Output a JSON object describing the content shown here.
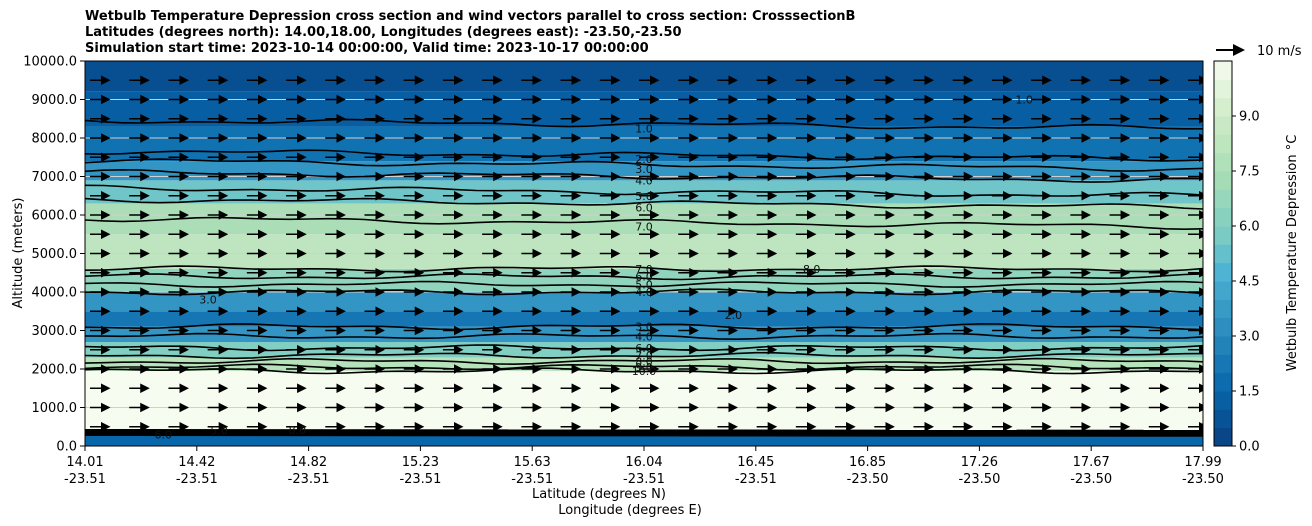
{
  "chart_data": {
    "type": "contour",
    "title_lines": [
      "Wetbulb Temperature Depression cross section and wind vectors parallel to cross section: CrosssectionB",
      "Latitudes (degrees north): 14.00,18.00, Longitudes (degrees east): -23.50,-23.50",
      "Simulation start time: 2023-10-14 00:00:00, Valid time: 2023-10-17 00:00:00"
    ],
    "xlabel_lat": "Latitude (degrees N)",
    "xlabel_lon": "Longitude (degrees E)",
    "ylabel": "Altitude (meters)",
    "ylim": [
      0,
      10000
    ],
    "y_ticks": [
      "0.0",
      "1000.0",
      "2000.0",
      "3000.0",
      "4000.0",
      "5000.0",
      "6000.0",
      "7000.0",
      "8000.0",
      "9000.0",
      "10000.0"
    ],
    "x_ticks": [
      {
        "lat": "14.01",
        "lon": "-23.51"
      },
      {
        "lat": "14.42",
        "lon": "-23.51"
      },
      {
        "lat": "14.82",
        "lon": "-23.51"
      },
      {
        "lat": "15.23",
        "lon": "-23.51"
      },
      {
        "lat": "15.63",
        "lon": "-23.51"
      },
      {
        "lat": "16.04",
        "lon": "-23.51"
      },
      {
        "lat": "16.45",
        "lon": "-23.51"
      },
      {
        "lat": "16.85",
        "lon": "-23.50"
      },
      {
        "lat": "17.26",
        "lon": "-23.50"
      },
      {
        "lat": "17.67",
        "lon": "-23.50"
      },
      {
        "lat": "17.99",
        "lon": "-23.50"
      }
    ],
    "colorbar": {
      "label": "Wetbulb Temperature Depression °C",
      "range": [
        0,
        10.5
      ],
      "ticks": [
        "0.0",
        "1.5",
        "3.0",
        "4.5",
        "6.0",
        "7.5",
        "9.0"
      ],
      "colormap": "GnBu_r"
    },
    "wind_key": {
      "label": "10 m/s"
    },
    "grid_altitudes": [
      1000,
      4000,
      5000,
      6000,
      7000,
      8000,
      9000
    ],
    "vector_rows": [
      500,
      1000,
      1500,
      2000,
      2500,
      3000,
      3500,
      4000,
      4500,
      5000,
      5500,
      6000,
      6500,
      7000,
      7500,
      8000,
      8500,
      9000,
      9500
    ],
    "bands": [
      {
        "bottom": 0,
        "top": 400,
        "value": 1.5
      },
      {
        "bottom": 400,
        "top": 1950,
        "value": 10.5
      },
      {
        "bottom": 1950,
        "top": 2300,
        "value": 8.0
      },
      {
        "bottom": 2300,
        "top": 2700,
        "value": 6.0
      },
      {
        "bottom": 2700,
        "top": 3100,
        "value": 3.5
      },
      {
        "bottom": 3100,
        "top": 3500,
        "value": 2.2
      },
      {
        "bottom": 3500,
        "top": 4000,
        "value": 3.5
      },
      {
        "bottom": 4000,
        "top": 4600,
        "value": 6.5
      },
      {
        "bottom": 4600,
        "top": 5500,
        "value": 8.3
      },
      {
        "bottom": 5500,
        "top": 6300,
        "value": 7.5
      },
      {
        "bottom": 6300,
        "top": 6900,
        "value": 5.5
      },
      {
        "bottom": 6900,
        "top": 7400,
        "value": 3.5
      },
      {
        "bottom": 7400,
        "top": 8300,
        "value": 2.0
      },
      {
        "bottom": 8300,
        "top": 9200,
        "value": 1.2
      },
      {
        "bottom": 9200,
        "top": 10000,
        "value": 0.6
      }
    ],
    "contour_levels": [
      {
        "alt": 9000,
        "label": "1.0",
        "x_frac": 0.84
      },
      {
        "alt": 8250,
        "label": "1.0",
        "x_frac": 0.5
      },
      {
        "alt": 7450,
        "label": "2.0",
        "x_frac": 0.5
      },
      {
        "alt": 7200,
        "label": "3.0",
        "x_frac": 0.5
      },
      {
        "alt": 6900,
        "label": "4.0",
        "x_frac": 0.5
      },
      {
        "alt": 6500,
        "label": "5.0",
        "x_frac": 0.5
      },
      {
        "alt": 6200,
        "label": "6.0",
        "x_frac": 0.5
      },
      {
        "alt": 5700,
        "label": "7.0",
        "x_frac": 0.5
      },
      {
        "alt": 4600,
        "label": "7.0",
        "x_frac": 0.5
      },
      {
        "alt": 4400,
        "label": "6.0",
        "x_frac": 0.5
      },
      {
        "alt": 4200,
        "label": "5.0",
        "x_frac": 0.5
      },
      {
        "alt": 4000,
        "label": "4.0",
        "x_frac": 0.5
      },
      {
        "alt": 3100,
        "label": "3.0",
        "x_frac": 0.5
      },
      {
        "alt": 2850,
        "label": "4.0",
        "x_frac": 0.5
      },
      {
        "alt": 2550,
        "label": "6.0",
        "x_frac": 0.5
      },
      {
        "alt": 2350,
        "label": "7.0",
        "x_frac": 0.5
      },
      {
        "alt": 2200,
        "label": "8.0",
        "x_frac": 0.5
      },
      {
        "alt": 2050,
        "label": "9.0",
        "x_frac": 0.5
      },
      {
        "alt": 1950,
        "label": "10.0",
        "x_frac": 0.5
      },
      {
        "alt": 3800,
        "label": "3.0",
        "x_frac": 0.11
      },
      {
        "alt": 3400,
        "label": "2.0",
        "x_frac": 0.58
      },
      {
        "alt": 4600,
        "label": "8.0",
        "x_frac": 0.65
      },
      {
        "alt": 400,
        "label": "5.0",
        "x_frac": 0.12
      },
      {
        "alt": 420,
        "label": "8.0",
        "x_frac": 0.19
      },
      {
        "alt": 300,
        "label": "6.0",
        "x_frac": 0.07
      }
    ]
  }
}
